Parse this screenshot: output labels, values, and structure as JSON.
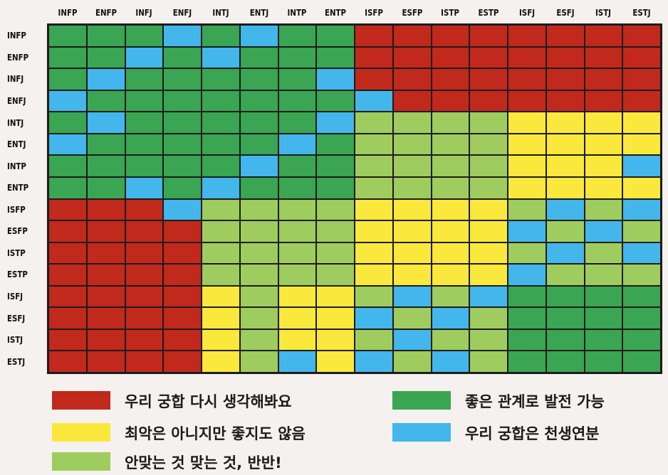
{
  "chart_data": {
    "type": "heatmap",
    "columns": [
      "INFP",
      "ENFP",
      "INFJ",
      "ENFJ",
      "INTJ",
      "ENTJ",
      "INTP",
      "ENTP",
      "ISFP",
      "ESFP",
      "ISTP",
      "ESTP",
      "ISFJ",
      "ESFJ",
      "ISTJ",
      "ESTJ"
    ],
    "rows": [
      "INFP",
      "ENFP",
      "INFJ",
      "ENFJ",
      "INTJ",
      "ENTJ",
      "INTP",
      "ENTP",
      "ISFP",
      "ESFP",
      "ISTP",
      "ESTP",
      "ISFJ",
      "ESFJ",
      "ISTJ",
      "ESTJ"
    ],
    "values": [
      [
        "G",
        "G",
        "G",
        "B",
        "G",
        "B",
        "G",
        "G",
        "R",
        "R",
        "R",
        "R",
        "R",
        "R",
        "R",
        "R"
      ],
      [
        "G",
        "G",
        "B",
        "G",
        "B",
        "G",
        "G",
        "G",
        "R",
        "R",
        "R",
        "R",
        "R",
        "R",
        "R",
        "R"
      ],
      [
        "G",
        "B",
        "G",
        "G",
        "G",
        "G",
        "G",
        "B",
        "R",
        "R",
        "R",
        "R",
        "R",
        "R",
        "R",
        "R"
      ],
      [
        "B",
        "G",
        "G",
        "G",
        "G",
        "G",
        "G",
        "G",
        "B",
        "R",
        "R",
        "R",
        "R",
        "R",
        "R",
        "R"
      ],
      [
        "G",
        "B",
        "G",
        "G",
        "G",
        "G",
        "G",
        "B",
        "L",
        "L",
        "L",
        "L",
        "Y",
        "Y",
        "Y",
        "Y"
      ],
      [
        "B",
        "G",
        "G",
        "G",
        "G",
        "G",
        "B",
        "G",
        "L",
        "L",
        "L",
        "L",
        "Y",
        "Y",
        "Y",
        "Y"
      ],
      [
        "G",
        "G",
        "G",
        "G",
        "G",
        "B",
        "G",
        "G",
        "L",
        "L",
        "L",
        "L",
        "Y",
        "Y",
        "Y",
        "B"
      ],
      [
        "G",
        "G",
        "B",
        "G",
        "B",
        "G",
        "G",
        "G",
        "L",
        "L",
        "L",
        "L",
        "Y",
        "Y",
        "Y",
        "Y"
      ],
      [
        "R",
        "R",
        "R",
        "B",
        "L",
        "L",
        "L",
        "L",
        "Y",
        "Y",
        "Y",
        "Y",
        "L",
        "B",
        "L",
        "B"
      ],
      [
        "R",
        "R",
        "R",
        "R",
        "L",
        "L",
        "L",
        "L",
        "Y",
        "Y",
        "Y",
        "Y",
        "B",
        "L",
        "B",
        "L"
      ],
      [
        "R",
        "R",
        "R",
        "R",
        "L",
        "L",
        "L",
        "L",
        "Y",
        "Y",
        "Y",
        "Y",
        "L",
        "B",
        "L",
        "B"
      ],
      [
        "R",
        "R",
        "R",
        "R",
        "L",
        "L",
        "L",
        "L",
        "Y",
        "Y",
        "Y",
        "Y",
        "B",
        "L",
        "L",
        "L"
      ],
      [
        "R",
        "R",
        "R",
        "R",
        "Y",
        "L",
        "Y",
        "Y",
        "L",
        "B",
        "L",
        "B",
        "G",
        "G",
        "G",
        "G"
      ],
      [
        "R",
        "R",
        "R",
        "R",
        "Y",
        "L",
        "Y",
        "Y",
        "B",
        "L",
        "B",
        "L",
        "G",
        "G",
        "G",
        "G"
      ],
      [
        "R",
        "R",
        "R",
        "R",
        "Y",
        "L",
        "Y",
        "Y",
        "L",
        "B",
        "L",
        "L",
        "G",
        "G",
        "G",
        "G"
      ],
      [
        "R",
        "R",
        "R",
        "R",
        "Y",
        "L",
        "B",
        "Y",
        "B",
        "L",
        "B",
        "L",
        "G",
        "G",
        "G",
        "G"
      ]
    ],
    "legend": [
      {
        "key": "R",
        "label": "우리 궁합 다시 생각해봐요",
        "color": "#c0291c"
      },
      {
        "key": "G",
        "label": "좋은 관계로 발전 가능",
        "color": "#3aa552"
      },
      {
        "key": "Y",
        "label": "최악은 아니지만 좋지도 않음",
        "color": "#fbe83c"
      },
      {
        "key": "B",
        "label": "우리 궁합은 천생연분",
        "color": "#43b6ec"
      },
      {
        "key": "L",
        "label": "안맞는 것 맞는 것, 반반!",
        "color": "#9fcc5e"
      }
    ]
  }
}
